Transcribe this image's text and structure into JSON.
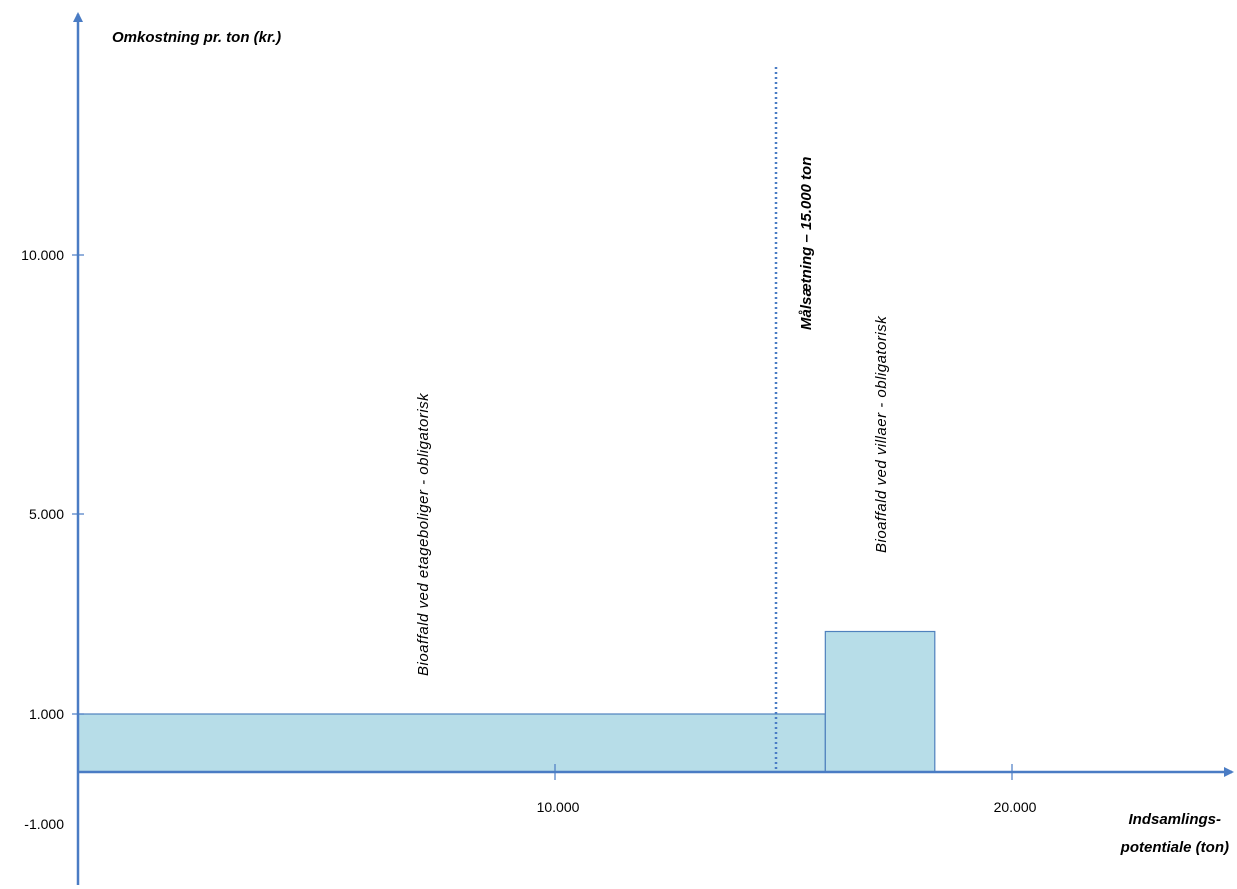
{
  "chart_data": {
    "type": "bar",
    "subtype": "step-cost-curve",
    "ylabel": "Omkostning pr. ton (kr.)",
    "xlabel_lines": [
      "Indsamlings-",
      "potentiale (ton)"
    ],
    "x_ticks": [
      {
        "value": 10000,
        "label": "10.000"
      },
      {
        "value": 20000,
        "label": "20.000"
      }
    ],
    "y_ticks": [
      {
        "value": 10000,
        "label": "10.000"
      },
      {
        "value": 5000,
        "label": "5.000"
      },
      {
        "value": 1000,
        "label": "1.000"
      },
      {
        "value": -1000,
        "label": "-1.000"
      }
    ],
    "bars": [
      {
        "name": "Bioaffald ved etageboliger - obligatorisk",
        "x_start": 0,
        "x_end": 15700,
        "value": 1000
      },
      {
        "name": "Bioaffald ved  villaer - obligatorisk",
        "x_start": 15700,
        "x_end": 18000,
        "value": 2650
      }
    ],
    "target": {
      "value": 15000,
      "label": "Målsætning  – 15.000 ton"
    },
    "colors": {
      "axis": "#4a7cc4",
      "bar_fill": "#b7dde8",
      "bar_stroke": "#4f81bd",
      "target_line": "#4a7cc4"
    }
  }
}
